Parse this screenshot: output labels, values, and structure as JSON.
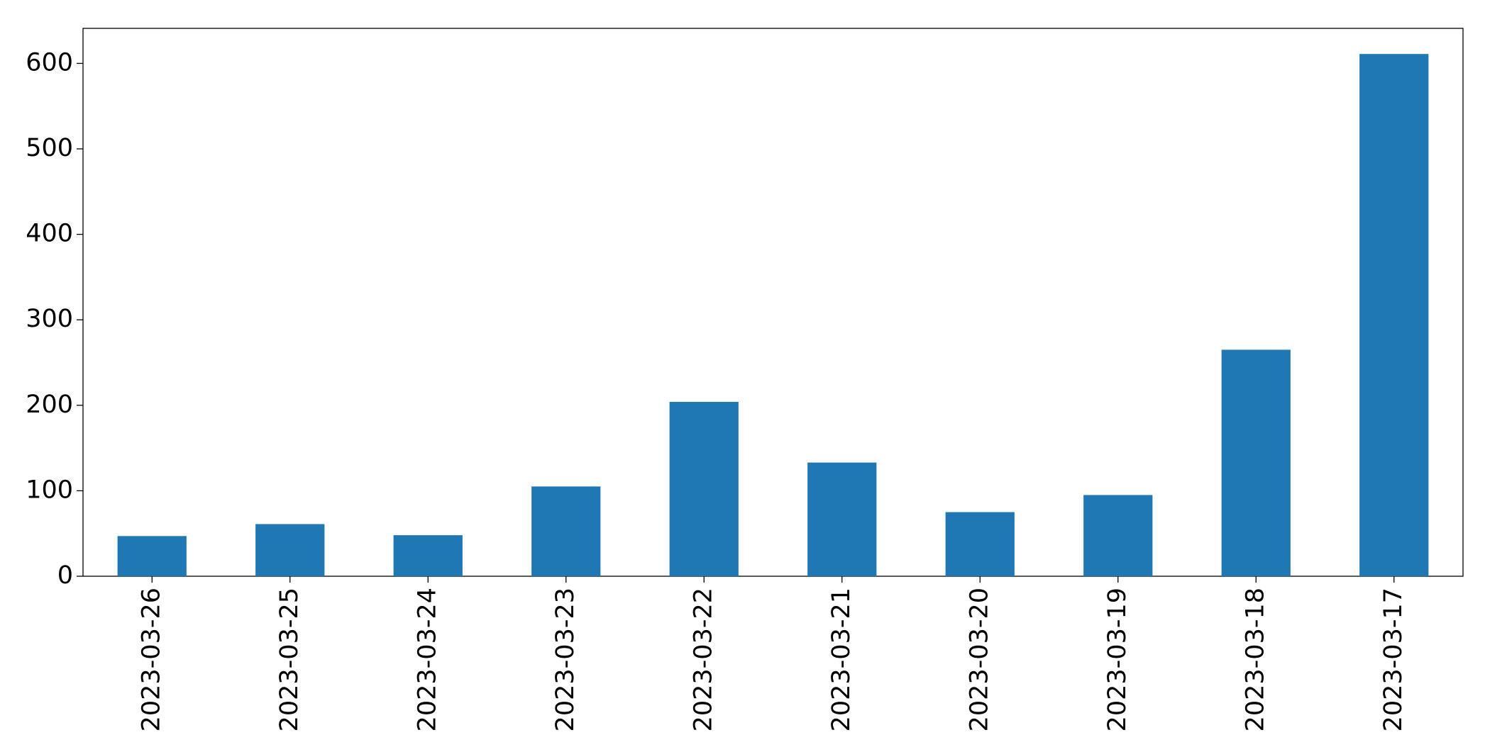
{
  "chart_data": {
    "type": "bar",
    "categories": [
      "2023-03-26",
      "2023-03-25",
      "2023-03-24",
      "2023-03-23",
      "2023-03-22",
      "2023-03-21",
      "2023-03-20",
      "2023-03-19",
      "2023-03-18",
      "2023-03-17"
    ],
    "values": [
      47,
      61,
      48,
      105,
      204,
      133,
      75,
      95,
      265,
      611
    ],
    "color": "#1f77b4",
    "ylim": [
      0,
      641
    ],
    "yticks": [
      0,
      100,
      200,
      300,
      400,
      500,
      600
    ],
    "grid": false
  }
}
